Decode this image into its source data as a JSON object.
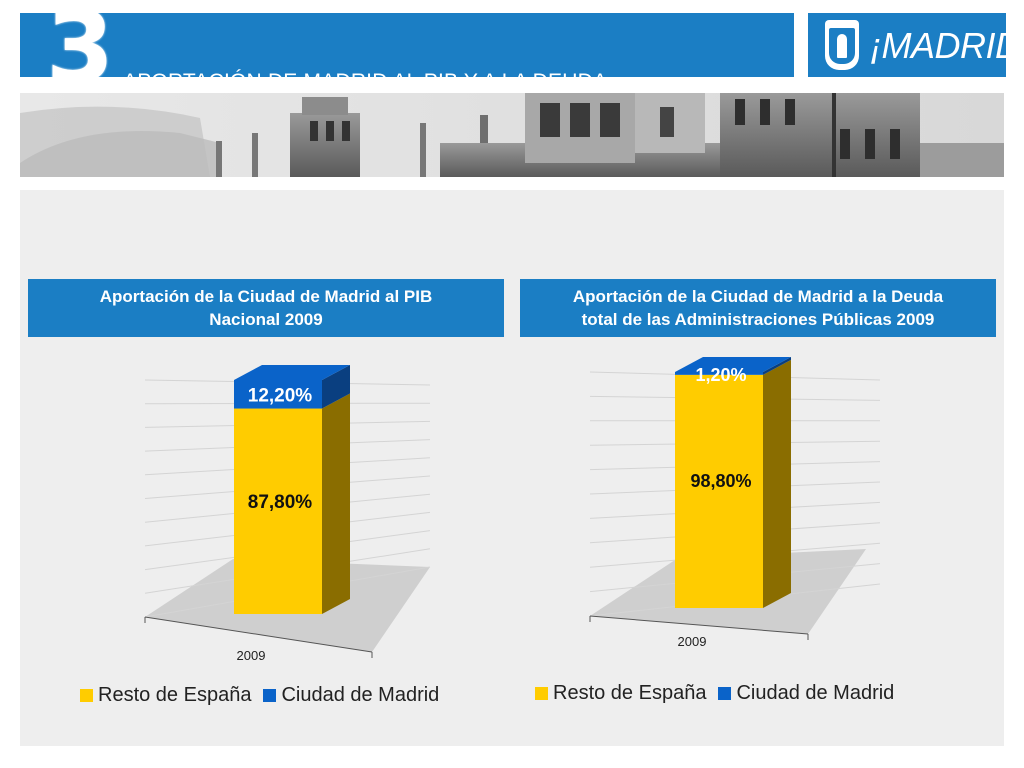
{
  "header": {
    "section_number": "3",
    "title": "APORTACIÓN DE MADRID AL PIB Y A LA DEUDA",
    "logo_text": "¡MADRID!"
  },
  "colors": {
    "brand_blue": "#1b7ec4",
    "resto": "#ffcc00",
    "resto_side": "#8a6d00",
    "madrid": "#0a63c9",
    "madrid_side": "#0a3f80"
  },
  "chart_data": [
    {
      "type": "bar",
      "stacked": true,
      "style": "3d-column",
      "title_lines": [
        "Aportación de la Ciudad de Madrid al PIB",
        "Nacional 2009"
      ],
      "categories": [
        "2009"
      ],
      "series": [
        {
          "name": "Resto de España",
          "values": [
            87.8
          ],
          "label": "87,80%"
        },
        {
          "name": "Ciudad de Madrid",
          "values": [
            12.2
          ],
          "label": "12,20%"
        }
      ],
      "ylim": [
        0,
        100
      ],
      "legend_position": "bottom",
      "grid": true
    },
    {
      "type": "bar",
      "stacked": true,
      "style": "3d-column",
      "title_lines": [
        "Aportación de la Ciudad de Madrid a la Deuda",
        "total de las Administraciones Públicas 2009"
      ],
      "categories": [
        "2009"
      ],
      "series": [
        {
          "name": "Resto de España",
          "values": [
            98.8
          ],
          "label": "98,80%"
        },
        {
          "name": "Ciudad de Madrid",
          "values": [
            1.2
          ],
          "label": "1,20%"
        }
      ],
      "ylim": [
        0,
        100
      ],
      "legend_position": "bottom",
      "grid": true
    }
  ]
}
